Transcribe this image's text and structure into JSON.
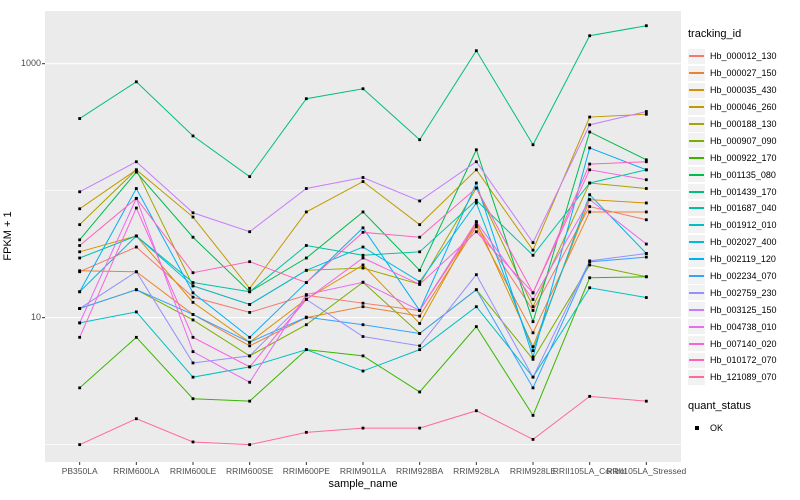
{
  "figure": {
    "y_axis_label": "FPKM + 1",
    "x_axis_label": "sample_name",
    "background": "#FFFFFF",
    "panel_background": "#EBEBEB",
    "gridline_color": "#FFFFFF",
    "tick_text_color": "#4D4D4D"
  },
  "legend": {
    "tracking_title": "tracking_id",
    "quant_title": "quant_status",
    "quant_item_label": "OK",
    "quant_point_color": "#000000"
  },
  "chart_data": {
    "type": "line",
    "title": "",
    "xlabel": "sample_name",
    "ylabel": "FPKM + 1",
    "y_scale": "log10",
    "ylim": [
      0.73,
      2600
    ],
    "grid": true,
    "legend_position": "right",
    "x_categories": [
      "PB350LA",
      "RRIM600LA",
      "RRIM600LE",
      "RRIM600SE",
      "RRIM600PE",
      "RRIM901LA",
      "RRIM928BA",
      "RRIM928LA",
      "RRIM928LE",
      "RRII105LA_Control",
      "RRII105LA_Stressed"
    ],
    "y_ticks": [
      {
        "label": "1000",
        "value": 1000
      },
      {
        "label": "10",
        "value": 10
      }
    ],
    "y_major_gridlines": [
      10,
      1000
    ],
    "y_minor_gridlines": [
      1,
      100
    ],
    "point_color": "#000000",
    "quant_status_all_points": "OK",
    "series": [
      {
        "name": "Hb_000012_130",
        "color": "#F8766D",
        "values": [
          23,
          36,
          14.5,
          11,
          15,
          13,
          11.4,
          54,
          11.4,
          75,
          59
        ]
      },
      {
        "name": "Hb_000027_150",
        "color": "#EA8331",
        "values": [
          23.4,
          23,
          10.6,
          6,
          10,
          12.2,
          10.3,
          52,
          7.6,
          68,
          68
        ]
      },
      {
        "name": "Hb_000035_430",
        "color": "#D89000",
        "values": [
          33,
          44,
          13.2,
          6.4,
          14,
          26,
          9,
          57,
          5.9,
          85,
          80
        ]
      },
      {
        "name": "Hb_000046_260",
        "color": "#C09B00",
        "values": [
          72,
          146,
          62,
          17,
          68,
          118,
          54,
          146,
          34,
          380,
          400
        ]
      },
      {
        "name": "Hb_000188_130",
        "color": "#A3A500",
        "values": [
          54,
          146,
          17.8,
          12.7,
          23.6,
          24.6,
          18.3,
          105,
          12.2,
          115,
          104
        ]
      },
      {
        "name": "Hb_000907_090",
        "color": "#7CAE00",
        "values": [
          11.8,
          16.6,
          9.6,
          5,
          8.8,
          19,
          7.5,
          16.6,
          4.7,
          26,
          21
        ]
      },
      {
        "name": "Hb_000922_170",
        "color": "#39B600",
        "values": [
          2.8,
          7,
          2.3,
          2.2,
          5.6,
          5,
          2.6,
          8.5,
          1.7,
          20.6,
          21
        ]
      },
      {
        "name": "Hb_001135_080",
        "color": "#00BB4E",
        "values": [
          41,
          140,
          43,
          16,
          29.5,
          68,
          23.6,
          210,
          9.3,
          290,
          175
        ]
      },
      {
        "name": "Hb_001439_170",
        "color": "#00BF7D",
        "values": [
          370,
          720,
          270,
          129,
          530,
          635,
          252,
          1265,
          230,
          1660,
          1990
        ]
      },
      {
        "name": "Hb_001687_040",
        "color": "#00C1A3",
        "values": [
          29.5,
          44,
          18.9,
          16,
          37,
          31,
          33,
          84,
          31,
          115,
          146
        ]
      },
      {
        "name": "Hb_001912_010",
        "color": "#00BFC4",
        "values": [
          9.1,
          11.1,
          3.4,
          4.1,
          5.6,
          3.8,
          5.6,
          12.2,
          3.4,
          17.2,
          14.4
        ]
      },
      {
        "name": "Hb_002027_400",
        "color": "#00BADE",
        "values": [
          16,
          44,
          17.8,
          12.7,
          23.6,
          36,
          19.2,
          80,
          5.5,
          93,
          32
        ]
      },
      {
        "name": "Hb_002119_120",
        "color": "#00B0F6",
        "values": [
          16,
          104,
          15.7,
          7,
          18.9,
          51,
          11.4,
          115,
          4.9,
          217,
          146
        ]
      },
      {
        "name": "Hb_002234_070",
        "color": "#35A2FF",
        "values": [
          11.8,
          16.6,
          10.6,
          6.4,
          10.1,
          8.8,
          7.5,
          16.6,
          2.8,
          27.5,
          30
        ]
      },
      {
        "name": "Hb_002759_230",
        "color": "#9590FF",
        "values": [
          11.8,
          23,
          4.4,
          5,
          13.9,
          7.1,
          6,
          21.8,
          3.4,
          28,
          32
        ]
      },
      {
        "name": "Hb_003125_150",
        "color": "#C77CFF",
        "values": [
          98,
          169,
          67,
          47.5,
          104,
          127,
          83,
          169,
          39,
          330,
          420
        ]
      },
      {
        "name": "Hb_004738_010",
        "color": "#E76BF3",
        "values": [
          9.1,
          87,
          5.4,
          3.1,
          15.2,
          19,
          11.4,
          57,
          13.9,
          85,
          38
        ]
      },
      {
        "name": "Hb_007140_020",
        "color": "#FA62DB",
        "values": [
          7,
          73,
          7,
          4.1,
          13.9,
          29.5,
          18.3,
          47.5,
          15.7,
          146,
          122
        ]
      },
      {
        "name": "Hb_010172_070",
        "color": "#FF62BC",
        "values": [
          37,
          87,
          22.6,
          27.6,
          18.9,
          47,
          43,
          105,
          15.7,
          162,
          169
        ]
      },
      {
        "name": "Hb_121089_070",
        "color": "#FF6A98",
        "values": [
          1.0,
          1.6,
          1.05,
          1.0,
          1.25,
          1.35,
          1.35,
          1.85,
          1.1,
          2.4,
          2.2
        ]
      }
    ]
  }
}
